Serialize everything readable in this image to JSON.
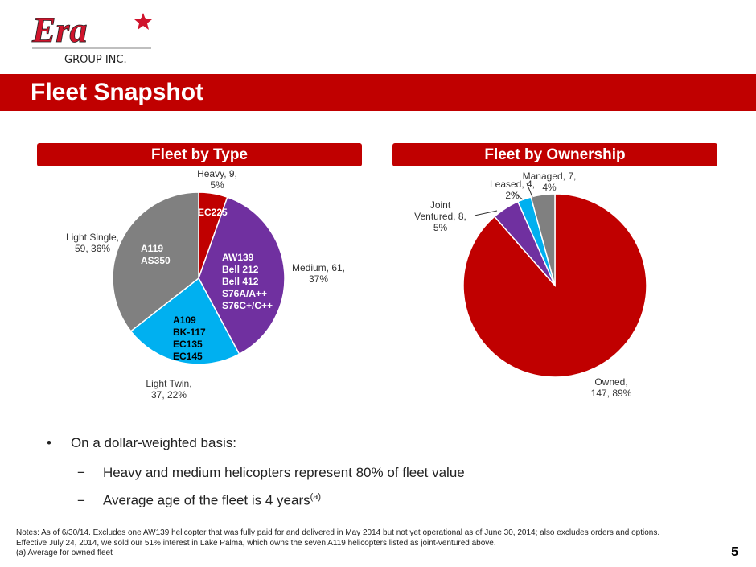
{
  "logo": {
    "text": "Era",
    "sub": "GROUP INC."
  },
  "title": "Fleet Snapshot",
  "page_number": "5",
  "chart_data": [
    {
      "type": "pie",
      "title": "Fleet by Type",
      "slices": [
        {
          "name": "Heavy",
          "value": 9,
          "pct": 5,
          "label": "Heavy, 9,",
          "label2": "5%",
          "color": "#c00000",
          "models": [
            "EC225"
          ]
        },
        {
          "name": "Medium",
          "value": 61,
          "pct": 37,
          "label": "Medium, 61,",
          "label2": "37%",
          "color": "#7030a0",
          "models": [
            "AW139",
            "Bell 212",
            "Bell 412",
            "S76A/A++",
            "S76C+/C++"
          ]
        },
        {
          "name": "Light Twin",
          "value": 37,
          "pct": 22,
          "label": "Light Twin,",
          "label2": "37, 22%",
          "color": "#00b0f0",
          "models": [
            "A109",
            "BK-117",
            "EC135",
            "EC145"
          ]
        },
        {
          "name": "Light Single",
          "value": 59,
          "pct": 36,
          "label": "Light Single,",
          "label2": "59, 36%",
          "color": "#808080",
          "models": [
            "A119",
            "AS350"
          ]
        }
      ]
    },
    {
      "type": "pie",
      "title": "Fleet by Ownership",
      "slices": [
        {
          "name": "Owned",
          "value": 147,
          "pct": 89,
          "label": "Owned,",
          "label2": "147, 89%",
          "color": "#c00000"
        },
        {
          "name": "Joint Ventured",
          "value": 8,
          "pct": 5,
          "label": "Joint",
          "label2": "Ventured, 8,",
          "label3": "5%",
          "color": "#7030a0"
        },
        {
          "name": "Leased",
          "value": 4,
          "pct": 2,
          "label": "Leased, 4,",
          "label2": "2%",
          "color": "#00b0f0"
        },
        {
          "name": "Managed",
          "value": 7,
          "pct": 4,
          "label": "Managed, 7,",
          "label2": "4%",
          "color": "#808080"
        }
      ]
    }
  ],
  "bullets": {
    "main": "On a dollar-weighted basis:",
    "sub1": "Heavy and medium helicopters represent 80% of fleet value",
    "sub2": "Average age of the fleet is 4 years",
    "sub2_sup": "(a)",
    "dash": "−",
    "dot": "•"
  },
  "notes": {
    "line1": "Notes: As of 6/30/14. Excludes one AW139 helicopter that was fully paid for and delivered in May 2014 but not yet operational as of June 30, 2014; also excludes orders and options.",
    "line2": "Effective July 24, 2014, we sold our 51% interest in Lake Palma, which owns the seven A119 helicopters listed as joint-ventured above.",
    "line3": "(a)    Average for owned fleet"
  }
}
